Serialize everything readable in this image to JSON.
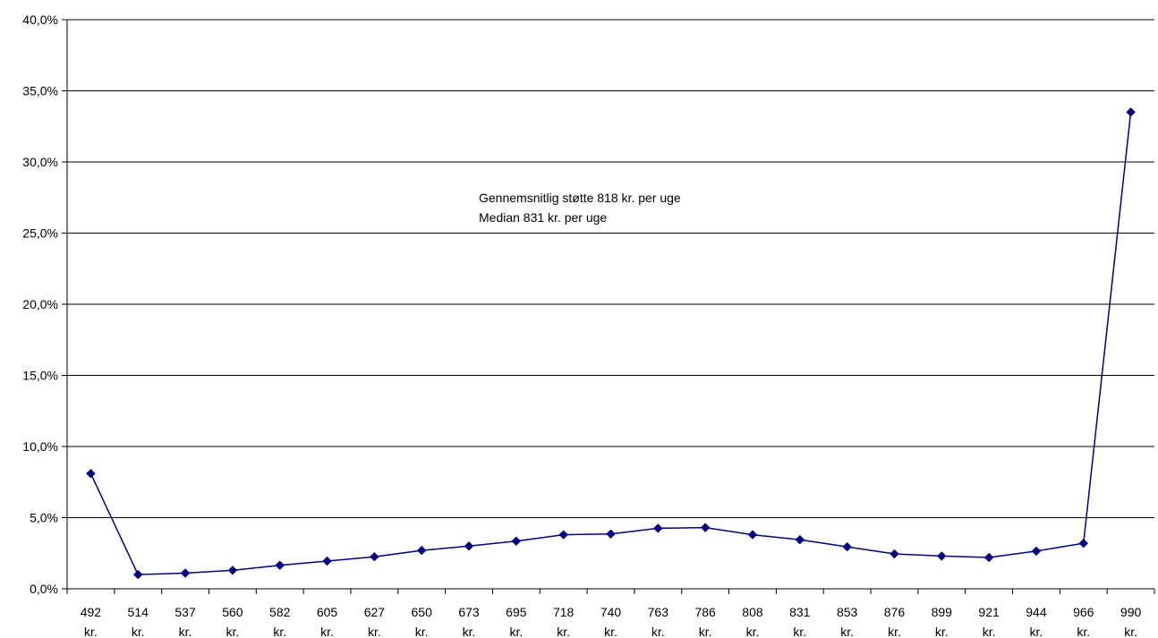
{
  "chart_data": {
    "type": "line",
    "title": "",
    "xlabel": "",
    "ylabel": "",
    "categories": [
      "492 kr.",
      "514 kr.",
      "537 kr.",
      "560 kr.",
      "582 kr.",
      "605 kr.",
      "627 kr.",
      "650 kr.",
      "673 kr.",
      "695 kr.",
      "718 kr.",
      "740 kr.",
      "763 kr.",
      "786 kr.",
      "808 kr.",
      "831 kr.",
      "853 kr.",
      "876 kr.",
      "899 kr.",
      "921 kr.",
      "944 kr.",
      "966 kr.",
      "990 kr."
    ],
    "category_lines": [
      [
        "492",
        "kr."
      ],
      [
        "514",
        "kr."
      ],
      [
        "537",
        "kr."
      ],
      [
        "560",
        "kr."
      ],
      [
        "582",
        "kr."
      ],
      [
        "605",
        "kr."
      ],
      [
        "627",
        "kr."
      ],
      [
        "650",
        "kr."
      ],
      [
        "673",
        "kr."
      ],
      [
        "695",
        "kr."
      ],
      [
        "718",
        "kr."
      ],
      [
        "740",
        "kr."
      ],
      [
        "763",
        "kr."
      ],
      [
        "786",
        "kr."
      ],
      [
        "808",
        "kr."
      ],
      [
        "831",
        "kr."
      ],
      [
        "853",
        "kr."
      ],
      [
        "876",
        "kr."
      ],
      [
        "899",
        "kr."
      ],
      [
        "921",
        "kr."
      ],
      [
        "944",
        "kr."
      ],
      [
        "966",
        "kr."
      ],
      [
        "990",
        "kr."
      ]
    ],
    "series": [
      {
        "values": [
          8.1,
          1.0,
          1.1,
          1.3,
          1.65,
          1.95,
          2.25,
          2.7,
          3.0,
          3.35,
          3.8,
          3.85,
          4.25,
          4.3,
          3.8,
          3.45,
          2.95,
          2.45,
          2.3,
          2.2,
          2.65,
          3.2,
          33.5
        ],
        "color": "#000080"
      }
    ],
    "ylim": [
      0,
      40
    ],
    "yticks": [
      0,
      5,
      10,
      15,
      20,
      25,
      30,
      35,
      40
    ],
    "ytick_labels": [
      "0,0%",
      "5,0%",
      "10,0%",
      "15,0%",
      "20,0%",
      "25,0%",
      "30,0%",
      "35,0%",
      "40,0%"
    ],
    "grid": true,
    "legend": "none",
    "annotations": [
      "Gennemsnitlig støtte 818 kr. per uge",
      "Median 831 kr. per uge"
    ]
  }
}
